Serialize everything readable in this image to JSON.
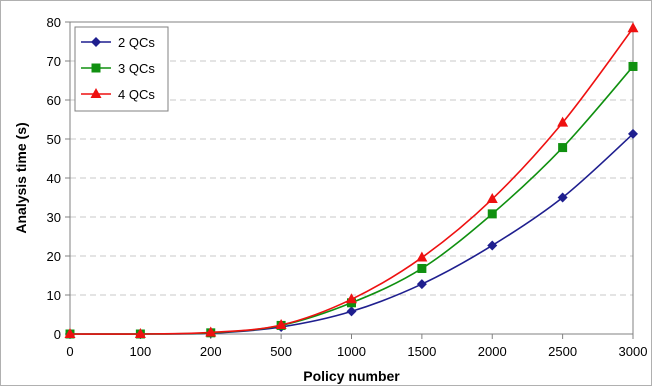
{
  "chart_data": {
    "type": "line",
    "title": "",
    "xlabel": "Policy number",
    "ylabel": "Analysis time (s)",
    "categories": [
      "0",
      "100",
      "200",
      "500",
      "1000",
      "1500",
      "2000",
      "2500",
      "3000"
    ],
    "ylim": [
      0,
      80
    ],
    "yticks": [
      0,
      10,
      20,
      30,
      40,
      50,
      60,
      70,
      80
    ],
    "grid": true,
    "legend": "top-left",
    "series": [
      {
        "name": "2 QCs",
        "color": "#1f1f8f",
        "marker": "diamond",
        "values": [
          0,
          0,
          0.2,
          1.8,
          5.8,
          12.8,
          22.7,
          35.0,
          51.3
        ]
      },
      {
        "name": "3 QCs",
        "color": "#109010",
        "marker": "square",
        "values": [
          0,
          0,
          0.3,
          2.2,
          8.0,
          16.8,
          30.8,
          47.8,
          68.6
        ]
      },
      {
        "name": "4 QCs",
        "color": "#ee1111",
        "marker": "triangle",
        "values": [
          0,
          0,
          0.4,
          2.3,
          8.9,
          19.6,
          34.6,
          54.2,
          78.4
        ]
      }
    ]
  }
}
